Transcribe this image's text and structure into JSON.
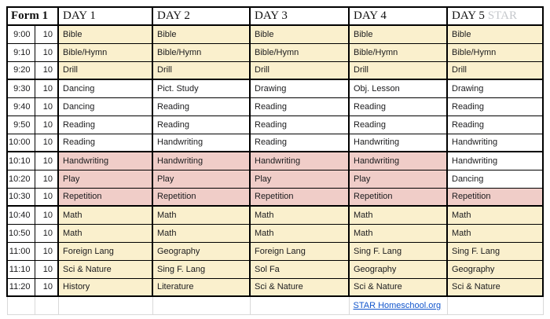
{
  "header": {
    "form_label": "Form 1",
    "days": [
      "DAY 1",
      "DAY 2",
      "DAY 3",
      "DAY 4",
      "DAY 5"
    ],
    "day5_suffix": "STAR"
  },
  "colors": {
    "cream": "#FAF0CD",
    "pink": "#F0CDC8",
    "white": "#FFFFFF",
    "link_blue": "#1155CC",
    "star_gray": "#C5C8CC",
    "border_dark": "#000000",
    "grid_light": "#D9D9D9"
  },
  "rows": [
    {
      "time": "9:00",
      "duration": "10",
      "subjects": [
        "Bible",
        "Bible",
        "Bible",
        "Bible",
        "Bible"
      ],
      "bg": [
        "cream",
        "cream",
        "cream",
        "cream",
        "cream"
      ],
      "thick_bottom": false
    },
    {
      "time": "9:10",
      "duration": "10",
      "subjects": [
        "Bible/Hymn",
        "Bible/Hymn",
        "Bible/Hymn",
        "Bible/Hymn",
        "Bible/Hymn"
      ],
      "bg": [
        "cream",
        "cream",
        "cream",
        "cream",
        "cream"
      ],
      "thick_bottom": false
    },
    {
      "time": "9:20",
      "duration": "10",
      "subjects": [
        "Drill",
        "Drill",
        "Drill",
        "Drill",
        "Drill"
      ],
      "bg": [
        "cream",
        "cream",
        "cream",
        "cream",
        "cream"
      ],
      "thick_bottom": true
    },
    {
      "time": "9:30",
      "duration": "10",
      "subjects": [
        "Dancing",
        "Pict. Study",
        "Drawing",
        "Obj. Lesson",
        "Drawing"
      ],
      "bg": [
        "white",
        "white",
        "white",
        "white",
        "white"
      ],
      "thick_bottom": false
    },
    {
      "time": "9:40",
      "duration": "10",
      "subjects": [
        "Dancing",
        "Reading",
        "Reading",
        "Reading",
        "Reading"
      ],
      "bg": [
        "white",
        "white",
        "white",
        "white",
        "white"
      ],
      "thick_bottom": false
    },
    {
      "time": "9:50",
      "duration": "10",
      "subjects": [
        "Reading",
        "Reading",
        "Reading",
        "Reading",
        "Reading"
      ],
      "bg": [
        "white",
        "white",
        "white",
        "white",
        "white"
      ],
      "thick_bottom": false
    },
    {
      "time": "10:00",
      "duration": "10",
      "subjects": [
        "Reading",
        "Handwriting",
        "Reading",
        "Handwriting",
        "Handwriting"
      ],
      "bg": [
        "white",
        "white",
        "white",
        "white",
        "white"
      ],
      "thick_bottom": true
    },
    {
      "time": "10:10",
      "duration": "10",
      "subjects": [
        "Handwriting",
        "Handwriting",
        "Handwriting",
        "Handwriting",
        "Handwriting"
      ],
      "bg": [
        "pink",
        "pink",
        "pink",
        "pink",
        "white"
      ],
      "thick_bottom": false
    },
    {
      "time": "10:20",
      "duration": "10",
      "subjects": [
        "Play",
        "Play",
        "Play",
        "Play",
        "Dancing"
      ],
      "bg": [
        "pink",
        "pink",
        "pink",
        "pink",
        "white"
      ],
      "thick_bottom": false
    },
    {
      "time": "10:30",
      "duration": "10",
      "subjects": [
        "Repetition",
        "Repetition",
        "Repetition",
        "Repetition",
        "Repetition"
      ],
      "bg": [
        "pink",
        "pink",
        "pink",
        "pink",
        "pink"
      ],
      "thick_bottom": true
    },
    {
      "time": "10:40",
      "duration": "10",
      "subjects": [
        "Math",
        "Math",
        "Math",
        "Math",
        "Math"
      ],
      "bg": [
        "cream",
        "cream",
        "cream",
        "cream",
        "cream"
      ],
      "thick_bottom": false
    },
    {
      "time": "10:50",
      "duration": "10",
      "subjects": [
        "Math",
        "Math",
        "Math",
        "Math",
        "Math"
      ],
      "bg": [
        "cream",
        "cream",
        "cream",
        "cream",
        "cream"
      ],
      "thick_bottom": false
    },
    {
      "time": "11:00",
      "duration": "10",
      "subjects": [
        "Foreign Lang",
        "Geography",
        "Foreign Lang",
        "Sing F. Lang",
        "Sing F. Lang"
      ],
      "bg": [
        "cream",
        "cream",
        "cream",
        "cream",
        "cream"
      ],
      "thick_bottom": false
    },
    {
      "time": "11:10",
      "duration": "10",
      "subjects": [
        "Sci & Nature",
        "Sing F. Lang",
        "Sol Fa",
        "Geography",
        "Geography"
      ],
      "bg": [
        "cream",
        "cream",
        "cream",
        "cream",
        "cream"
      ],
      "thick_bottom": false
    },
    {
      "time": "11:20",
      "duration": "10",
      "subjects": [
        "History",
        "Literature",
        "Sci & Nature",
        "Sci & Nature",
        "Sci & Nature"
      ],
      "bg": [
        "cream",
        "cream",
        "cream",
        "cream",
        "cream"
      ],
      "thick_bottom": true
    }
  ],
  "footer": {
    "link_text": "STAR Homeschool.org",
    "link_day_index": 3
  }
}
